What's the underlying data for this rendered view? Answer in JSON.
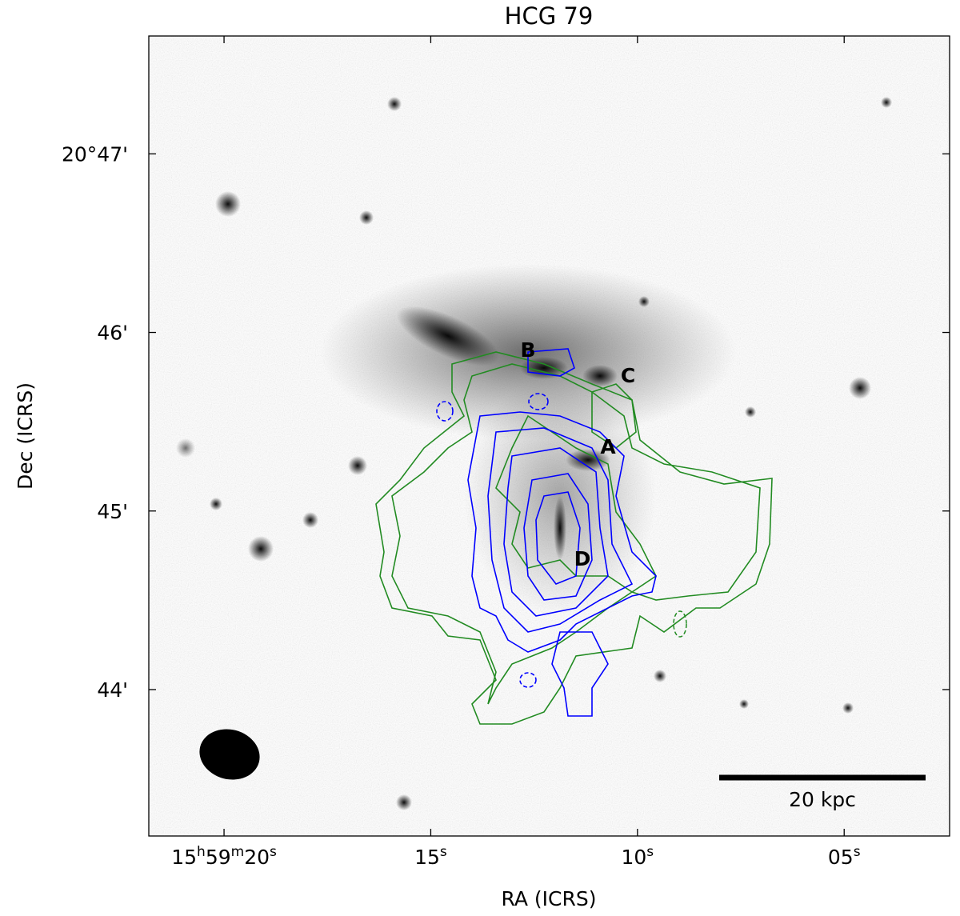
{
  "chart_data": {
    "type": "image",
    "title": "HCG 79",
    "xlabel": "RA (ICRS)",
    "ylabel": "Dec (ICRS)",
    "xlim": [
      21.82,
      2.45
    ],
    "xticks": [
      {
        "value": 20,
        "label": "15h59m20s"
      },
      {
        "value": 15,
        "label": "15s"
      },
      {
        "value": 10,
        "label": "10s"
      },
      {
        "value": 5,
        "label": "05s"
      }
    ],
    "ylim": [
      43.18,
      47.66
    ],
    "yticks": [
      {
        "value": 47,
        "label": "20°47'"
      },
      {
        "value": 46,
        "label": "46'"
      },
      {
        "value": 45,
        "label": "45'"
      },
      {
        "value": 44,
        "label": "44'"
      }
    ],
    "annotations": [
      "A",
      "B",
      "C",
      "D"
    ],
    "scalebar_label": "20 kpc",
    "contour_colors": [
      "#228b22",
      "#0000ff"
    ]
  }
}
